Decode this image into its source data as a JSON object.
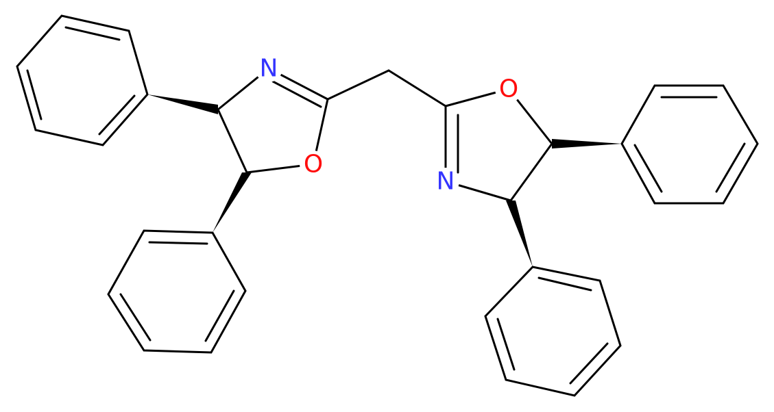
{
  "atoms": [
    {
      "label": "N"
    },
    {
      "label": "O"
    },
    {
      "label": "O"
    },
    {
      "label": "N"
    }
  ]
}
